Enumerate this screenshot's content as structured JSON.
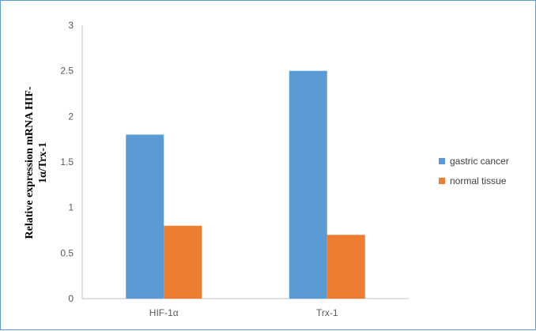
{
  "chart_data": {
    "type": "bar",
    "title": "",
    "xlabel": "",
    "ylabel_lines": [
      "Relative expression mRNA HIF-",
      "1α/Trx-1"
    ],
    "categories": [
      "HIF-1α",
      "Trx-1"
    ],
    "series": [
      {
        "name": "gastric cancer",
        "color": "#5b9bd5",
        "values": [
          1.8,
          2.5
        ]
      },
      {
        "name": "normal tissue",
        "color": "#ed7d31",
        "values": [
          0.8,
          0.7
        ]
      }
    ],
    "ylim": [
      0,
      3
    ],
    "yticks": [
      0,
      0.5,
      1,
      1.5,
      2,
      2.5,
      3
    ],
    "ytick_labels": [
      "0",
      "0.5",
      "1",
      "1.5",
      "2",
      "2.5",
      "3"
    ],
    "grid": false,
    "legend_position": "right"
  }
}
